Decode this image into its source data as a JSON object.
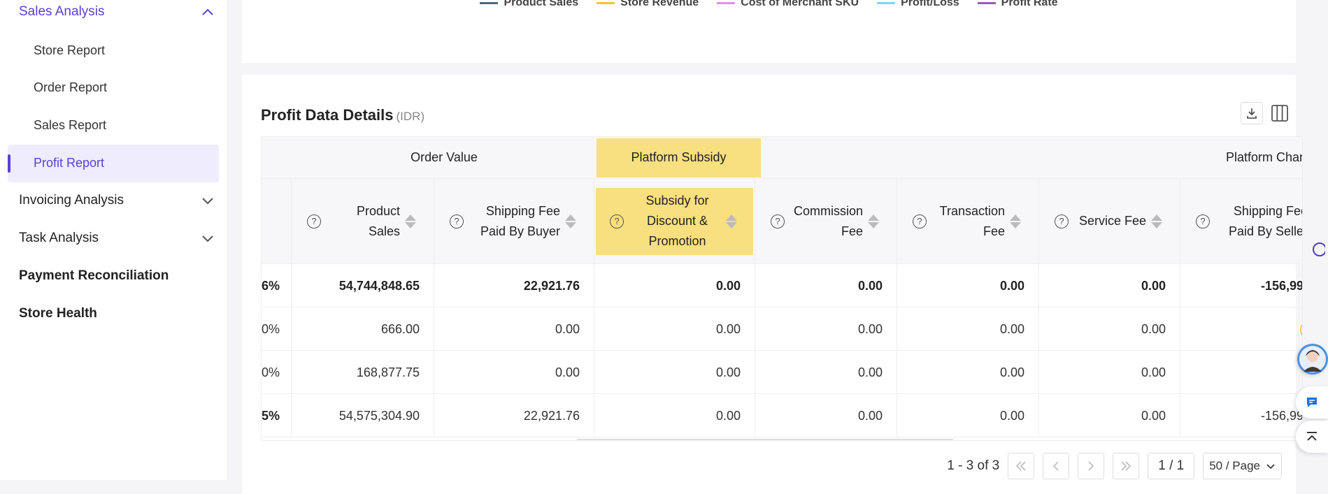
{
  "sidebar": {
    "sales_analysis": "Sales Analysis",
    "sub_items": [
      "Store Report",
      "Order Report",
      "Sales Report",
      "Profit Report"
    ],
    "invoicing": "Invoicing Analysis",
    "task": "Task Analysis",
    "payment": "Payment Reconciliation",
    "store_health": "Store Health"
  },
  "legend": [
    {
      "label": "Product Sales",
      "color": "#4e6680"
    },
    {
      "label": "Store Revenue",
      "color": "#f5c23a"
    },
    {
      "label": "Cost of Merchant SKU",
      "color": "#de8fe8"
    },
    {
      "label": "Profit/Loss",
      "color": "#7fd3f5"
    },
    {
      "label": "Profit Rate",
      "color": "#9b59b6"
    }
  ],
  "card": {
    "title": "Profit Data Details",
    "unit": "(IDR)"
  },
  "table": {
    "groups": {
      "order_value": "Order Value",
      "platform_subsidy": "Platform Subsidy",
      "platform_charges": "Platform Char"
    },
    "columns": {
      "product_sales": "Product Sales",
      "shipping_buyer": "Shipping Fee Paid By Buyer",
      "subsidy": "Subsidy for Discount & Promotion",
      "commission": "Commission Fee",
      "transaction": "Transaction Fee",
      "service": "Service Fee",
      "shipping_seller": "Shipping Fee Paid By Seller"
    },
    "rows": [
      {
        "rate": "6%",
        "product_sales": "54,744,848.65",
        "shipping_buyer": "22,921.76",
        "subsidy": "0.00",
        "commission": "0.00",
        "transaction": "0.00",
        "service": "0.00",
        "shipping_seller": "-156,99"
      },
      {
        "rate": "0%",
        "product_sales": "666.00",
        "shipping_buyer": "0.00",
        "subsidy": "0.00",
        "commission": "0.00",
        "transaction": "0.00",
        "service": "0.00",
        "shipping_seller": "("
      },
      {
        "rate": "0%",
        "product_sales": "168,877.75",
        "shipping_buyer": "0.00",
        "subsidy": "0.00",
        "commission": "0.00",
        "transaction": "0.00",
        "service": "0.00",
        "shipping_seller": ""
      },
      {
        "rate": "5%",
        "product_sales": "54,575,304.90",
        "shipping_buyer": "22,921.76",
        "subsidy": "0.00",
        "commission": "0.00",
        "transaction": "0.00",
        "service": "0.00",
        "shipping_seller": "-156,99"
      }
    ]
  },
  "pagination": {
    "range": "1 - 3 of 3",
    "page": "1 / 1",
    "page_size": "50 / Page"
  },
  "colors": {
    "accent": "#5a3fd6",
    "highlight": "#f8df7f"
  }
}
